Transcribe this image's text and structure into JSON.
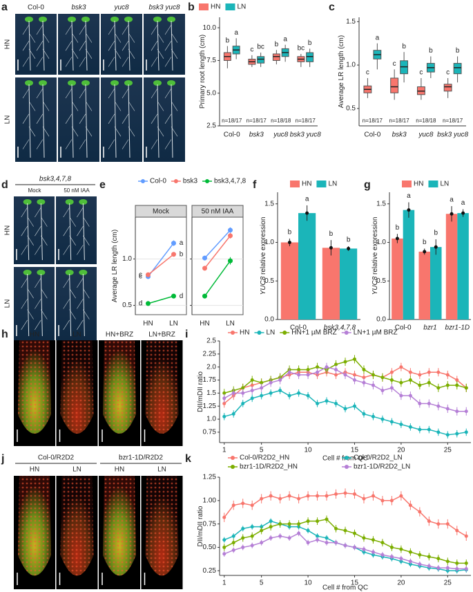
{
  "image_panels": [
    {
      "panel_label": "a",
      "columns": [
        "Col-0",
        "bsk3",
        "yuc8",
        "bsk3 yuc8"
      ],
      "rows": [
        "HN",
        "LN"
      ]
    },
    {
      "panel_label": "d",
      "title": "bsk3,4,7,8",
      "columns": [
        "Mock",
        "50 nM IAA"
      ],
      "rows": [
        "HN",
        "LN"
      ]
    },
    {
      "panel_label": "h",
      "columns": [
        "HN",
        "LN",
        "HN+BRZ",
        "LN+BRZ"
      ]
    },
    {
      "panel_label": "j",
      "groups": [
        "Col-0/R2D2",
        "bzr1-1D/R2D2"
      ],
      "columns": [
        "HN",
        "LN",
        "HN",
        "LN"
      ]
    }
  ],
  "chart_data": [
    {
      "type": "box",
      "panel_label": "b",
      "ylabel": "Primary root length (cm)",
      "categories": [
        "Col-0",
        "bsk3",
        "yuc8",
        "bsk3 yuc8"
      ],
      "ylim": [
        2.5,
        10.8
      ],
      "yticks": [
        2.5,
        {
          "value": 5,
          "label": "5.0"
        },
        7.5,
        {
          "value": 10,
          "label": "10.0"
        }
      ],
      "n_labels": [
        "n=18/17",
        "n=18/17",
        "n=18/18",
        "n=18/17"
      ],
      "series": [
        {
          "name": "HN",
          "color": "#f8766d",
          "median": [
            7.8,
            7.4,
            7.8,
            7.6
          ],
          "q1": [
            7.5,
            7.2,
            7.5,
            7.4
          ],
          "q3": [
            8.1,
            7.6,
            8.0,
            7.8
          ],
          "whislo": [
            6.9,
            7.0,
            7.2,
            7.0
          ],
          "whishi": [
            8.6,
            7.9,
            8.3,
            8.0
          ],
          "letters": [
            "b",
            "c",
            "b",
            "bc"
          ]
        },
        {
          "name": "LN",
          "color": "#1bb5b9",
          "median": [
            8.3,
            7.6,
            8.1,
            7.8
          ],
          "q1": [
            8.0,
            7.3,
            7.8,
            7.4
          ],
          "q3": [
            8.6,
            7.8,
            8.4,
            8.1
          ],
          "whislo": [
            7.6,
            7.0,
            7.4,
            7.0
          ],
          "whishi": [
            9.2,
            8.1,
            8.7,
            8.4
          ],
          "letters": [
            "a",
            "bc",
            "a",
            "b"
          ]
        }
      ]
    },
    {
      "type": "box",
      "panel_label": "c",
      "ylabel": "Average LR length (cm)",
      "categories": [
        "Col-0",
        "bsk3",
        "yuc8",
        "bsk3 yuc8"
      ],
      "ylim": [
        0.3,
        1.55
      ],
      "yticks": [
        0.5,
        {
          "value": 1,
          "label": "1.0"
        },
        1.5
      ],
      "n_labels": [
        "n=18/17",
        "n=18/17",
        "n=18/18",
        "n=18/17"
      ],
      "series": [
        {
          "color": "#f8766d",
          "median": [
            0.72,
            0.75,
            0.7,
            0.75
          ],
          "q1": [
            0.68,
            0.68,
            0.66,
            0.7
          ],
          "q3": [
            0.76,
            0.85,
            0.75,
            0.78
          ],
          "whislo": [
            0.62,
            0.6,
            0.6,
            0.62
          ],
          "whishi": [
            0.85,
            0.95,
            0.85,
            0.85
          ],
          "letters": [
            "c",
            "c",
            "c",
            "c"
          ]
        },
        {
          "color": "#1bb5b9",
          "median": [
            1.12,
            0.98,
            0.97,
            0.97
          ],
          "q1": [
            1.07,
            0.9,
            0.92,
            0.9
          ],
          "q3": [
            1.17,
            1.05,
            1.02,
            1.02
          ],
          "whislo": [
            0.95,
            0.8,
            0.85,
            0.8
          ],
          "whishi": [
            1.25,
            1.15,
            1.1,
            1.1
          ],
          "letters": [
            "a",
            "b",
            "b",
            "b"
          ]
        }
      ]
    },
    {
      "type": "facet-line",
      "panel_label": "e",
      "ylabel": "Average LR length (cm)",
      "categories": [
        "HN",
        "LN"
      ],
      "facets": [
        "Mock",
        "50 nM IAA"
      ],
      "ylim": [
        0.4,
        1.45
      ],
      "yticks": [
        0.5,
        {
          "value": 1,
          "label": "1.0"
        }
      ],
      "grid": true,
      "series": [
        {
          "name": "Col-0",
          "color": "#619cff",
          "values": [
            [
              0.81,
              1.17
            ],
            [
              1.01,
              1.31
            ]
          ],
          "errors": [
            [
              0.02,
              0.03
            ],
            [
              0.02,
              0.03
            ]
          ],
          "letters": [
            "c",
            "a"
          ]
        },
        {
          "name": "bsk3",
          "color": "#f8766d",
          "values": [
            [
              0.83,
              1.05
            ],
            [
              0.9,
              1.25
            ]
          ],
          "errors": [
            [
              0.02,
              0.02
            ],
            [
              0.02,
              0.03
            ]
          ],
          "letters": [
            "c",
            "b"
          ]
        },
        {
          "name": "bsk3,4,7,8",
          "color": "#00ba38",
          "values": [
            [
              0.52,
              0.6
            ],
            [
              0.6,
              0.98
            ]
          ],
          "errors": [
            [
              0.02,
              0.02
            ],
            [
              0.02,
              0.04
            ]
          ],
          "letters": [
            "d",
            "d"
          ]
        }
      ]
    },
    {
      "type": "bar",
      "panel_label": "f",
      "ylabel_gene": "YUC8",
      "ylabel": " relative expression",
      "categories": [
        "Col-0",
        "bsk3,4,7,8"
      ],
      "ylim": [
        0,
        1.65
      ],
      "yticks": [
        {
          "value": 0,
          "label": "0.0"
        },
        0.5,
        {
          "value": 1,
          "label": "1.0"
        },
        1.5
      ],
      "series": [
        {
          "name": "HN",
          "color": "#f8766d",
          "values": [
            1.0,
            0.93
          ],
          "errors": [
            0.05,
            0.1
          ],
          "letters": [
            "b",
            "b"
          ]
        },
        {
          "name": "LN",
          "color": "#1bb5b9",
          "values": [
            1.38,
            0.92
          ],
          "errors": [
            0.1,
            0.03
          ],
          "letters": [
            "a",
            "b"
          ]
        }
      ]
    },
    {
      "type": "bar",
      "panel_label": "g",
      "ylabel_gene": "YUC8",
      "ylabel": " relative expression",
      "categories": [
        "Col-0",
        "bzr1",
        "bzr1-1D"
      ],
      "ylim": [
        0,
        1.65
      ],
      "yticks": [
        {
          "value": 0,
          "label": "0.0"
        },
        0.5,
        {
          "value": 1,
          "label": "1.0"
        },
        1.5
      ],
      "series": [
        {
          "name": "HN",
          "color": "#f8766d",
          "values": [
            1.05,
            0.88,
            1.37
          ],
          "errors": [
            0.06,
            0.04,
            0.1
          ],
          "letters": [
            "b",
            "b",
            "a"
          ]
        },
        {
          "name": "LN",
          "color": "#1bb5b9",
          "values": [
            1.42,
            0.94,
            1.38
          ],
          "errors": [
            0.1,
            0.1,
            0.05
          ],
          "letters": [
            "a",
            "b",
            "a"
          ]
        }
      ]
    },
    {
      "type": "line",
      "panel_label": "i",
      "xlabel": "Cell # from QC",
      "ylabel": "DII/mDII ratio",
      "x": [
        1,
        2,
        3,
        4,
        5,
        6,
        7,
        8,
        9,
        10,
        11,
        12,
        13,
        14,
        15,
        16,
        17,
        18,
        19,
        20,
        21,
        22,
        23,
        24,
        25,
        26,
        27
      ],
      "xlim": [
        0.5,
        27.5
      ],
      "xticks": [
        1,
        5,
        10,
        15,
        20,
        25
      ],
      "ylim": [
        0.55,
        2.5
      ],
      "yticks": [
        0.75,
        {
          "value": 1,
          "label": "1.0"
        },
        1.25,
        1.5,
        1.75,
        {
          "value": 2,
          "label": "2.0"
        },
        2.25,
        2.5
      ],
      "series": [
        {
          "name": "HN",
          "color": "#f8766d",
          "error": 0.08,
          "values": [
            1.3,
            1.45,
            1.6,
            1.65,
            1.7,
            1.75,
            1.8,
            1.85,
            1.9,
            1.9,
            1.85,
            1.9,
            1.85,
            1.9,
            1.85,
            1.8,
            1.85,
            1.8,
            1.9,
            2.0,
            1.9,
            1.85,
            1.9,
            1.9,
            1.85,
            1.75,
            1.6
          ]
        },
        {
          "name": "LN",
          "color": "#1bb5b9",
          "error": 0.07,
          "values": [
            1.05,
            1.1,
            1.3,
            1.4,
            1.45,
            1.5,
            1.55,
            1.45,
            1.5,
            1.45,
            1.3,
            1.35,
            1.3,
            1.2,
            1.25,
            1.1,
            1.05,
            1.0,
            0.95,
            0.9,
            0.85,
            0.8,
            0.8,
            0.75,
            0.7,
            0.72,
            0.75
          ]
        },
        {
          "name": "HN+1 µM BRZ",
          "color": "#7cae00",
          "error": 0.08,
          "values": [
            1.5,
            1.55,
            1.6,
            1.75,
            1.7,
            1.75,
            1.8,
            1.95,
            1.95,
            1.95,
            2.0,
            1.95,
            2.05,
            2.1,
            2.15,
            1.95,
            1.85,
            1.8,
            1.75,
            1.7,
            1.75,
            1.65,
            1.7,
            1.6,
            1.65,
            1.65,
            1.6
          ]
        },
        {
          "name": "LN+1 µM BRZ",
          "color": "#b57fd6",
          "error": 0.08,
          "values": [
            1.4,
            1.5,
            1.5,
            1.55,
            1.6,
            1.7,
            1.75,
            1.9,
            1.85,
            1.85,
            1.9,
            2.0,
            1.95,
            1.85,
            1.75,
            1.7,
            1.65,
            1.55,
            1.6,
            1.45,
            1.45,
            1.3,
            1.3,
            1.25,
            1.2,
            1.15,
            1.15
          ]
        }
      ]
    },
    {
      "type": "line",
      "panel_label": "k",
      "xlabel": "Cell # from QC",
      "ylabel": "DII/mDII ratio",
      "x": [
        1,
        2,
        3,
        4,
        5,
        6,
        7,
        8,
        9,
        10,
        11,
        12,
        13,
        14,
        15,
        16,
        17,
        18,
        19,
        20,
        21,
        22,
        23,
        24,
        25,
        26,
        27
      ],
      "xlim": [
        0.5,
        27.5
      ],
      "xticks": [
        1,
        5,
        10,
        15,
        20,
        25
      ],
      "ylim": [
        0.2,
        1.25
      ],
      "yticks": [
        0.25,
        {
          "value": 0.5,
          "label": "0.50"
        },
        0.75,
        {
          "value": 1,
          "label": "1.00"
        },
        1.25
      ],
      "series": [
        {
          "name": "Col-0/R2D2_HN",
          "color": "#f8766d",
          "error": 0.05,
          "values": [
            0.82,
            0.95,
            0.97,
            0.95,
            1.02,
            1.05,
            1.02,
            1.05,
            1.02,
            1.05,
            1.05,
            1.05,
            1.07,
            1.08,
            1.07,
            1.02,
            1.05,
            1.0,
            1.0,
            1.05,
            0.95,
            0.88,
            0.78,
            0.75,
            0.75,
            0.68,
            0.62
          ]
        },
        {
          "name": "Col-0/R2D2_LN",
          "color": "#1bb5b9",
          "error": 0.03,
          "values": [
            0.58,
            0.62,
            0.7,
            0.72,
            0.72,
            0.78,
            0.75,
            0.72,
            0.72,
            0.68,
            0.62,
            0.6,
            0.55,
            0.52,
            0.5,
            0.45,
            0.42,
            0.4,
            0.38,
            0.35,
            0.32,
            0.3,
            0.28,
            0.27,
            0.25,
            0.25,
            0.26
          ]
        },
        {
          "name": "bzr1-1D/R2D2_HN",
          "color": "#7cae00",
          "error": 0.04,
          "values": [
            0.5,
            0.55,
            0.6,
            0.62,
            0.68,
            0.72,
            0.75,
            0.75,
            0.75,
            0.78,
            0.78,
            0.8,
            0.7,
            0.68,
            0.65,
            0.6,
            0.58,
            0.55,
            0.5,
            0.48,
            0.45,
            0.42,
            0.4,
            0.38,
            0.35,
            0.33,
            0.33
          ]
        },
        {
          "name": "bzr1-1D/R2D2_LN",
          "color": "#b57fd6",
          "error": 0.03,
          "values": [
            0.43,
            0.47,
            0.5,
            0.52,
            0.55,
            0.6,
            0.62,
            0.6,
            0.65,
            0.55,
            0.58,
            0.55,
            0.55,
            0.52,
            0.5,
            0.48,
            0.45,
            0.42,
            0.4,
            0.38,
            0.35,
            0.32,
            0.3,
            0.28,
            0.28,
            0.27,
            0.27
          ]
        }
      ]
    }
  ]
}
